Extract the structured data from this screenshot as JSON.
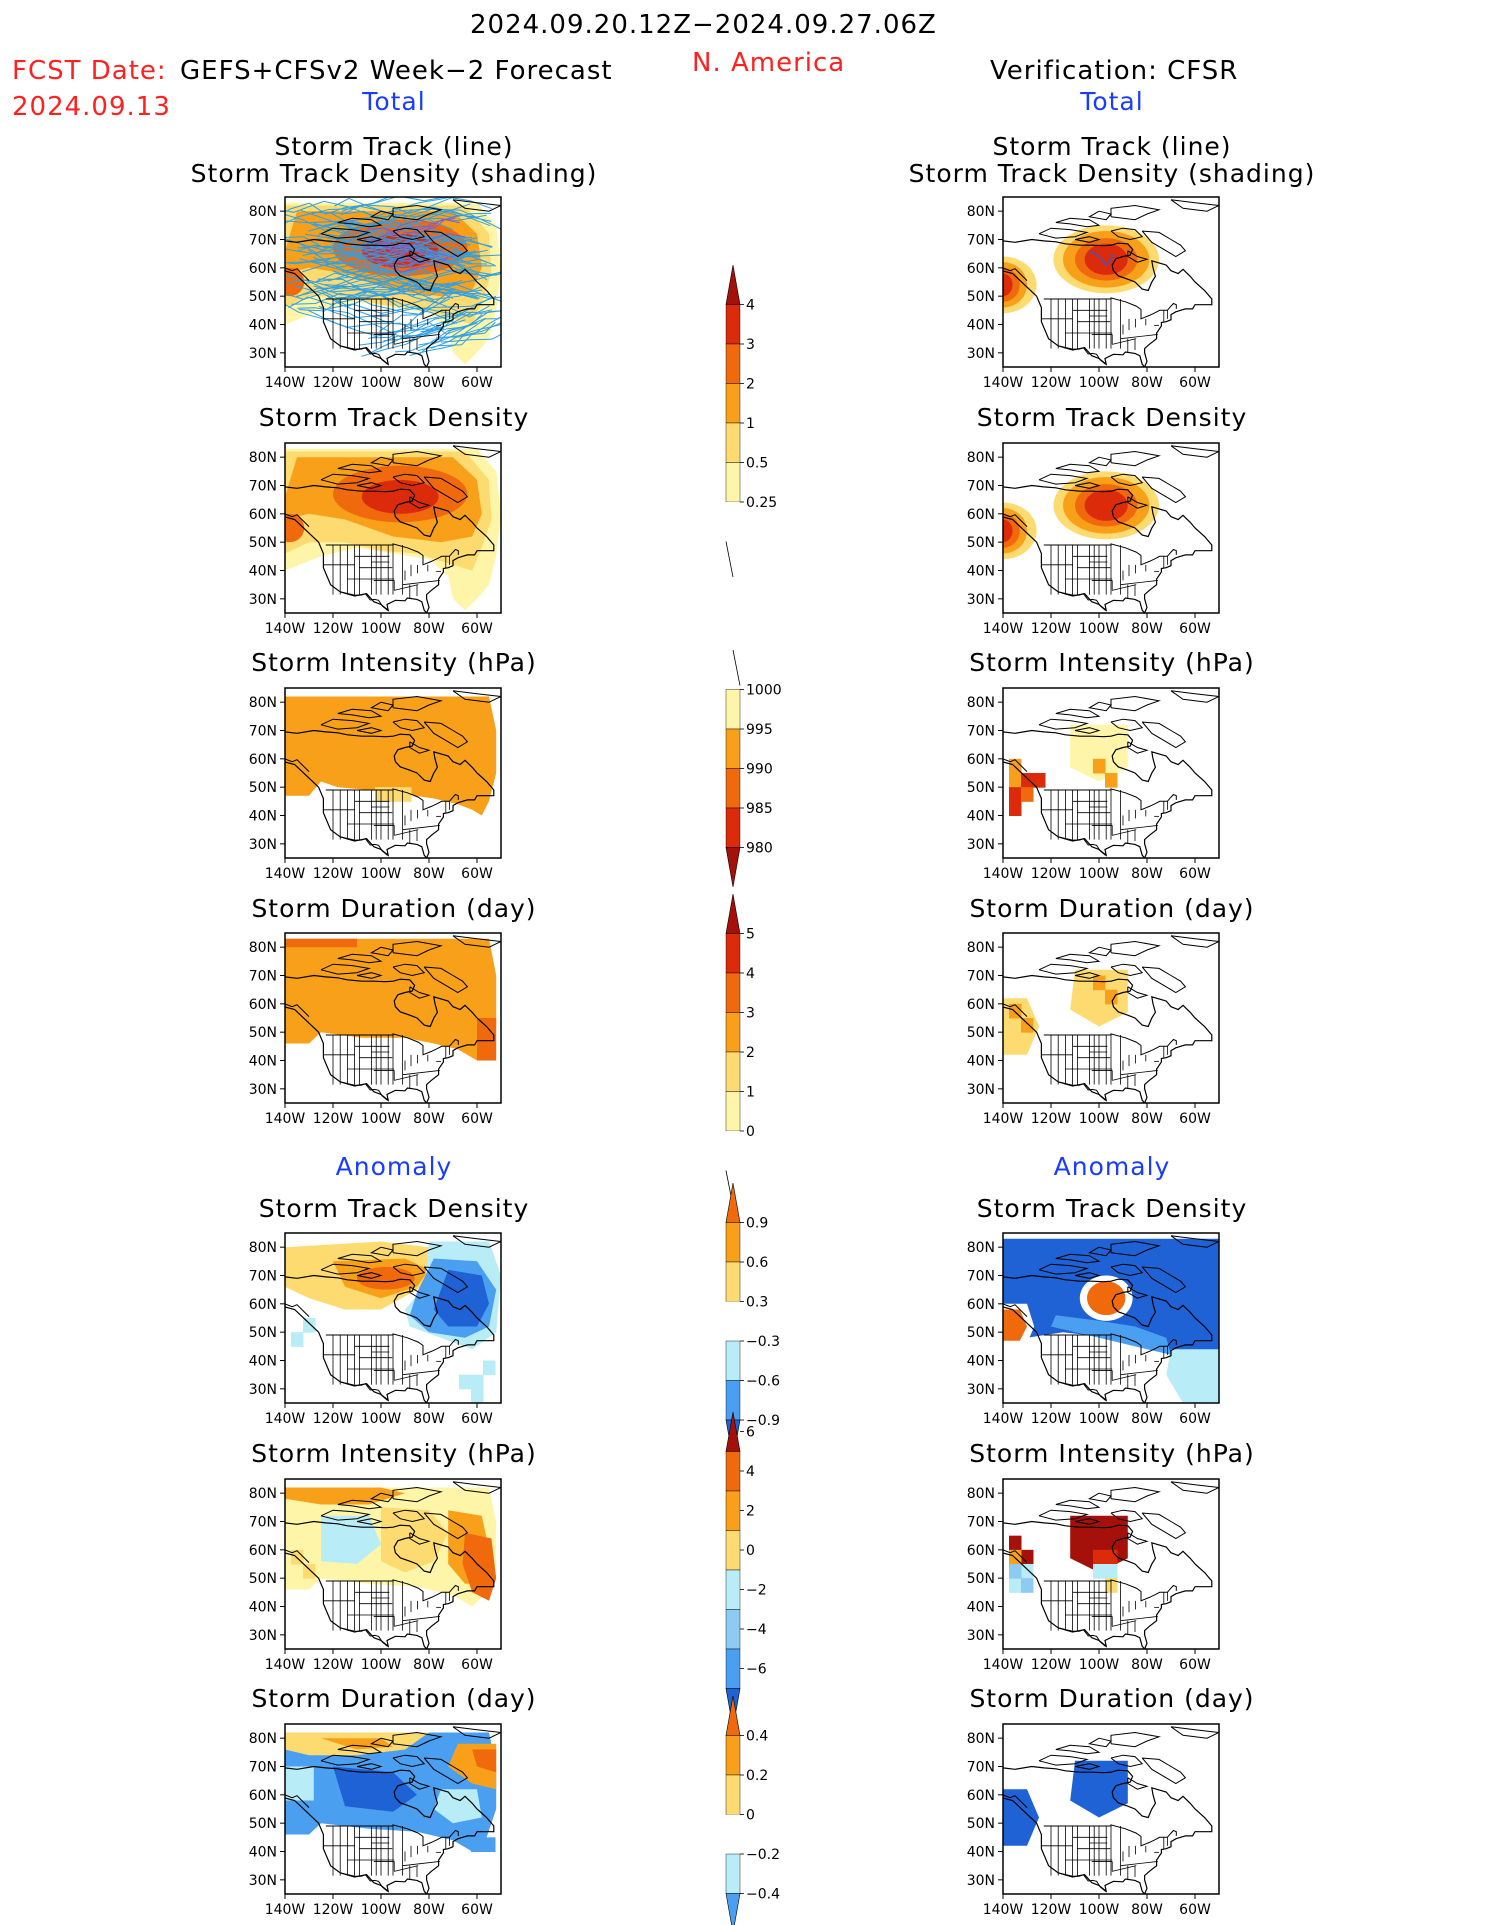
{
  "header": {
    "period": "2024.09.20.12Z−2024.09.27.06Z",
    "region": "N. America",
    "fcst_date_label": "FCST Date:",
    "fcst_date": "2024.09.13",
    "forecast_name": "GEFS+CFSv2 Week−2 Forecast",
    "verification": "Verification: CFSR"
  },
  "sections": {
    "total": "Total",
    "anomaly": "Anomaly"
  },
  "axes": {
    "lat_ticks": [
      "80N",
      "70N",
      "60N",
      "50N",
      "40N",
      "30N"
    ],
    "lon_ticks": [
      "140W",
      "120W",
      "100W",
      "80W",
      "60W"
    ]
  },
  "panels": {
    "track_line_title_1": "Storm Track (line)",
    "track_line_title_2": "Storm Track Density (shading)",
    "density": "Storm Track Density",
    "intensity": "Storm Intensity (hPa)",
    "duration": "Storm Duration (day)"
  },
  "colorbars": {
    "density_total": [
      "4",
      "3",
      "2",
      "1",
      "0.5",
      "0.25"
    ],
    "intensity_total": [
      "1000",
      "995",
      "990",
      "985",
      "980"
    ],
    "duration_total": [
      "5",
      "4",
      "3",
      "2",
      "1",
      "0"
    ],
    "density_anom": [
      "0.9",
      "0.6",
      "0.3",
      "−0.3",
      "−0.6",
      "−0.9"
    ],
    "intensity_anom": [
      "6",
      "4",
      "2",
      "0",
      "−2",
      "−4",
      "−6"
    ],
    "duration_anom": [
      "0.4",
      "0.2",
      "0",
      "−0.2",
      "−0.4"
    ]
  },
  "colors": {
    "warm_light": "#fff5a8",
    "warm_yellow": "#fddb70",
    "warm_orange": "#f9a01b",
    "warm_dark_orange": "#f06a0d",
    "warm_red": "#dc2b0a",
    "warm_dark_red": "#a5110a",
    "cool_light": "#b8ecf7",
    "cool_mid": "#8ecbf3",
    "cool_blue": "#4b9ff0",
    "cool_dark": "#1e62d6",
    "track_line": "#2ea0e6",
    "header_red": "#ff2020",
    "header_blue": "#1a3cff"
  },
  "chart_data": [
    {
      "type": "heatmap",
      "title": "Storm Track (line) / Storm Track Density (shading)",
      "column": "Total GEFS+CFSv2",
      "region": "N. America",
      "xlim": [
        "140W",
        "50W"
      ],
      "ylim": [
        "25N",
        "85N"
      ],
      "colorbar": [
        0.25,
        0.5,
        1,
        2,
        3,
        4
      ],
      "max_region": "Canadian Arctic ~65N 95W"
    },
    {
      "type": "heatmap",
      "title": "Storm Track (line) / Storm Track Density (shading)",
      "column": "Verification CFSR",
      "colorbar": [
        0.25,
        0.5,
        1,
        2,
        3,
        4
      ],
      "max_region": "~63N 95W and ~55N 135W"
    },
    {
      "type": "heatmap",
      "title": "Storm Track Density",
      "column": "Total GEFS+CFSv2",
      "colorbar": [
        0.25,
        0.5,
        1,
        2,
        3,
        4
      ]
    },
    {
      "type": "heatmap",
      "title": "Storm Track Density",
      "column": "Verification CFSR",
      "colorbar": [
        0.25,
        0.5,
        1,
        2,
        3,
        4
      ]
    },
    {
      "type": "heatmap",
      "title": "Storm Intensity (hPa)",
      "column": "Total GEFS+CFSv2",
      "colorbar": [
        1000,
        995,
        990,
        985,
        980
      ]
    },
    {
      "type": "heatmap",
      "title": "Storm Intensity (hPa)",
      "column": "Verification CFSR",
      "colorbar": [
        1000,
        995,
        990,
        985,
        980
      ]
    },
    {
      "type": "heatmap",
      "title": "Storm Duration (day)",
      "column": "Total GEFS+CFSv2",
      "colorbar": [
        0,
        1,
        2,
        3,
        4,
        5
      ]
    },
    {
      "type": "heatmap",
      "title": "Storm Duration (day)",
      "column": "Verification CFSR",
      "colorbar": [
        0,
        1,
        2,
        3,
        4,
        5
      ]
    },
    {
      "type": "heatmap",
      "title": "Storm Track Density",
      "column": "Anomaly GEFS+CFSv2",
      "colorbar": [
        -0.9,
        -0.6,
        -0.3,
        0.3,
        0.6,
        0.9
      ]
    },
    {
      "type": "heatmap",
      "title": "Storm Track Density",
      "column": "Anomaly CFSR",
      "colorbar": [
        -0.9,
        -0.6,
        -0.3,
        0.3,
        0.6,
        0.9
      ]
    },
    {
      "type": "heatmap",
      "title": "Storm Intensity (hPa)",
      "column": "Anomaly GEFS+CFSv2",
      "colorbar": [
        -6,
        -4,
        -2,
        0,
        2,
        4,
        6
      ]
    },
    {
      "type": "heatmap",
      "title": "Storm Intensity (hPa)",
      "column": "Anomaly CFSR",
      "colorbar": [
        -6,
        -4,
        -2,
        0,
        2,
        4,
        6
      ]
    },
    {
      "type": "heatmap",
      "title": "Storm Duration (day)",
      "column": "Anomaly GEFS+CFSv2",
      "colorbar": [
        -0.4,
        -0.2,
        0,
        0.2,
        0.4
      ]
    },
    {
      "type": "heatmap",
      "title": "Storm Duration (day)",
      "column": "Anomaly CFSR",
      "colorbar": [
        -0.4,
        -0.2,
        0,
        0.2,
        0.4
      ]
    }
  ]
}
